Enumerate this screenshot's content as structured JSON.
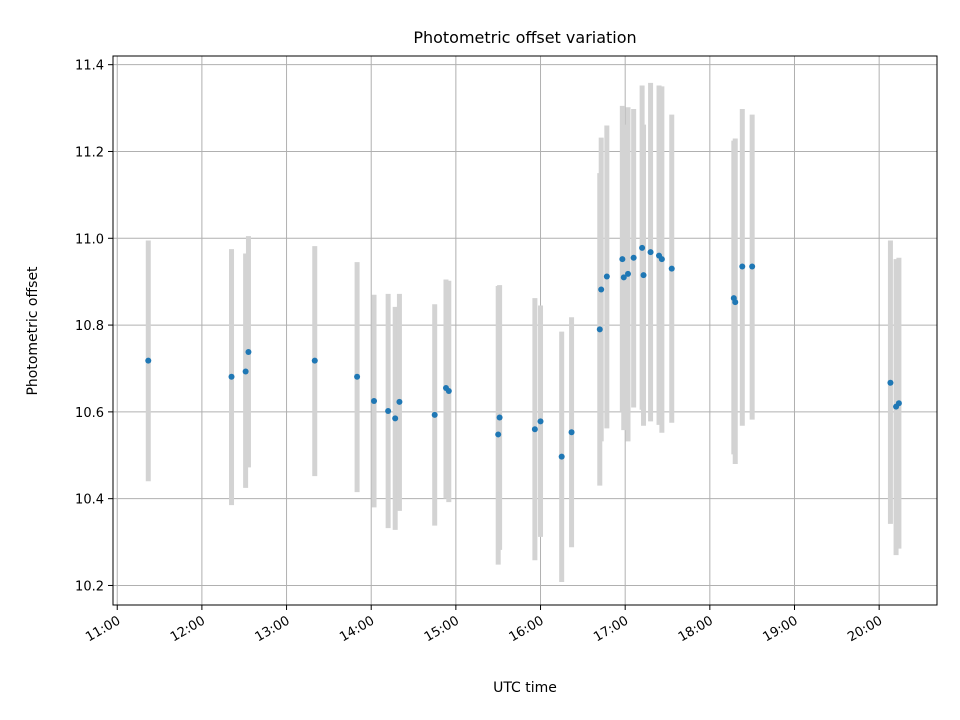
{
  "chart_data": {
    "type": "scatter",
    "title": "Photometric offset variation",
    "xlabel": "UTC time",
    "ylabel": "Photometric offset",
    "x_ticks": [
      "11:00",
      "12:00",
      "13:00",
      "14:00",
      "15:00",
      "16:00",
      "17:00",
      "18:00",
      "19:00",
      "20:00"
    ],
    "y_ticks": [
      "10.2",
      "10.4",
      "10.6",
      "10.8",
      "11.0",
      "11.2",
      "11.4"
    ],
    "xlim": [
      "10:57",
      "20:41"
    ],
    "ylim": [
      10.155,
      11.42
    ],
    "grid": true,
    "marker_color": "#1f77b4",
    "errorbar_color": "#d3d3d3",
    "points": [
      {
        "t": "11:22",
        "y": 10.718,
        "lo": 10.44,
        "hi": 10.995
      },
      {
        "t": "12:21",
        "y": 10.681,
        "lo": 10.385,
        "hi": 10.975
      },
      {
        "t": "12:31",
        "y": 10.693,
        "lo": 10.425,
        "hi": 10.965
      },
      {
        "t": "12:33",
        "y": 10.738,
        "lo": 10.472,
        "hi": 11.005
      },
      {
        "t": "13:20",
        "y": 10.718,
        "lo": 10.452,
        "hi": 10.982
      },
      {
        "t": "13:50",
        "y": 10.681,
        "lo": 10.415,
        "hi": 10.945
      },
      {
        "t": "14:02",
        "y": 10.625,
        "lo": 10.38,
        "hi": 10.87
      },
      {
        "t": "14:12",
        "y": 10.602,
        "lo": 10.332,
        "hi": 10.872
      },
      {
        "t": "14:17",
        "y": 10.585,
        "lo": 10.328,
        "hi": 10.842
      },
      {
        "t": "14:20",
        "y": 10.623,
        "lo": 10.372,
        "hi": 10.872
      },
      {
        "t": "14:45",
        "y": 10.593,
        "lo": 10.338,
        "hi": 10.848
      },
      {
        "t": "14:53",
        "y": 10.655,
        "lo": 10.4,
        "hi": 10.905
      },
      {
        "t": "14:55",
        "y": 10.648,
        "lo": 10.392,
        "hi": 10.902
      },
      {
        "t": "15:30",
        "y": 10.548,
        "lo": 10.248,
        "hi": 10.89
      },
      {
        "t": "15:31",
        "y": 10.587,
        "lo": 10.282,
        "hi": 10.892
      },
      {
        "t": "15:56",
        "y": 10.56,
        "lo": 10.258,
        "hi": 10.862
      },
      {
        "t": "16:00",
        "y": 10.578,
        "lo": 10.312,
        "hi": 10.845
      },
      {
        "t": "16:15",
        "y": 10.497,
        "lo": 10.208,
        "hi": 10.785
      },
      {
        "t": "16:22",
        "y": 10.553,
        "lo": 10.288,
        "hi": 10.818
      },
      {
        "t": "16:42",
        "y": 10.79,
        "lo": 10.43,
        "hi": 11.15
      },
      {
        "t": "16:43",
        "y": 10.882,
        "lo": 10.532,
        "hi": 11.232
      },
      {
        "t": "16:47",
        "y": 10.912,
        "lo": 10.562,
        "hi": 11.26
      },
      {
        "t": "16:58",
        "y": 10.952,
        "lo": 10.602,
        "hi": 11.305
      },
      {
        "t": "16:59",
        "y": 10.91,
        "lo": 10.558,
        "hi": 11.262
      },
      {
        "t": "17:02",
        "y": 10.918,
        "lo": 10.532,
        "hi": 11.302
      },
      {
        "t": "17:06",
        "y": 10.955,
        "lo": 10.61,
        "hi": 11.298
      },
      {
        "t": "17:12",
        "y": 10.978,
        "lo": 10.605,
        "hi": 11.352
      },
      {
        "t": "17:13",
        "y": 10.915,
        "lo": 10.568,
        "hi": 11.262
      },
      {
        "t": "17:18",
        "y": 10.968,
        "lo": 10.578,
        "hi": 11.358
      },
      {
        "t": "17:24",
        "y": 10.96,
        "lo": 10.57,
        "hi": 11.352
      },
      {
        "t": "17:26",
        "y": 10.952,
        "lo": 10.552,
        "hi": 11.35
      },
      {
        "t": "17:33",
        "y": 10.93,
        "lo": 10.575,
        "hi": 11.285
      },
      {
        "t": "18:17",
        "y": 10.862,
        "lo": 10.502,
        "hi": 11.225
      },
      {
        "t": "18:18",
        "y": 10.853,
        "lo": 10.48,
        "hi": 11.23
      },
      {
        "t": "18:23",
        "y": 10.935,
        "lo": 10.568,
        "hi": 11.298
      },
      {
        "t": "18:30",
        "y": 10.935,
        "lo": 10.582,
        "hi": 11.285
      },
      {
        "t": "20:08",
        "y": 10.667,
        "lo": 10.342,
        "hi": 10.995
      },
      {
        "t": "20:12",
        "y": 10.612,
        "lo": 10.27,
        "hi": 10.952
      },
      {
        "t": "20:14",
        "y": 10.62,
        "lo": 10.285,
        "hi": 10.955
      }
    ]
  }
}
